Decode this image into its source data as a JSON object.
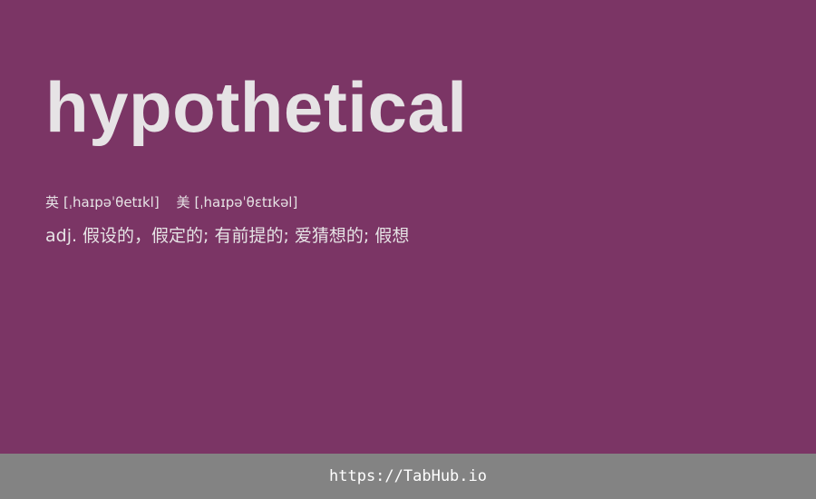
{
  "colors": {
    "background": "#7b3565",
    "text": "#e6e3e5",
    "footer_background": "#838383",
    "footer_text": "#ffffff"
  },
  "card": {
    "word": "hypothetical",
    "phonetics": {
      "uk_label": "英",
      "uk": "[ˌhaɪpəˈθetɪkl]",
      "us_label": "美",
      "us": "[ˌhaɪpəˈθɛtɪkəl]"
    },
    "definition": {
      "pos": "adj.",
      "meaning": "假设的，假定的; 有前提的; 爱猜想的; 假想"
    }
  },
  "footer": {
    "link": "https://TabHub.io"
  }
}
